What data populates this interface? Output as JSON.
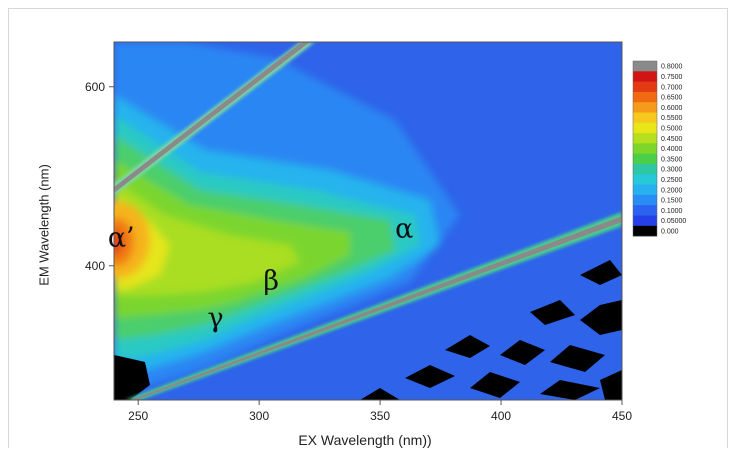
{
  "chart_data": {
    "type": "heatmap",
    "xlabel": "EX Wavelength (nm))",
    "ylabel": "EM Wavelength (nm)",
    "xlim": [
      240,
      450
    ],
    "ylim": [
      250,
      650
    ],
    "x_ticks": [
      "250",
      "300",
      "350",
      "400",
      "450"
    ],
    "y_ticks": [
      "400",
      "600"
    ],
    "colorbar": {
      "placement": "right",
      "labels": [
        "0.8000",
        "0.7500",
        "0.7000",
        "0.6500",
        "0.6000",
        "0.5500",
        "0.5000",
        "0.4500",
        "0.4000",
        "0.3500",
        "0.3000",
        "0.2500",
        "0.2000",
        "0.1500",
        "0.1000",
        "0.05000",
        "0.000"
      ],
      "colors": [
        "#8a8a8a",
        "#d11414",
        "#e33a14",
        "#f06a14",
        "#f59a1a",
        "#f7c81e",
        "#e8e619",
        "#b6e01e",
        "#7fd62a",
        "#4bcf4a",
        "#2fc7a3",
        "#27c9d8",
        "#28b0f0",
        "#2a8cf5",
        "#2b63f0",
        "#2540e6",
        "#000000"
      ]
    },
    "peaks": [
      {
        "label": "α’",
        "ex": 243,
        "em": 430,
        "value": 0.62
      },
      {
        "label": "α",
        "ex": 360,
        "em": 440,
        "value": 0.3
      },
      {
        "label": "β",
        "ex": 305,
        "em": 382,
        "value": 0.45
      },
      {
        "label": "γ",
        "ex": 282,
        "em": 340,
        "value": 0.4
      }
    ],
    "grid": false
  }
}
